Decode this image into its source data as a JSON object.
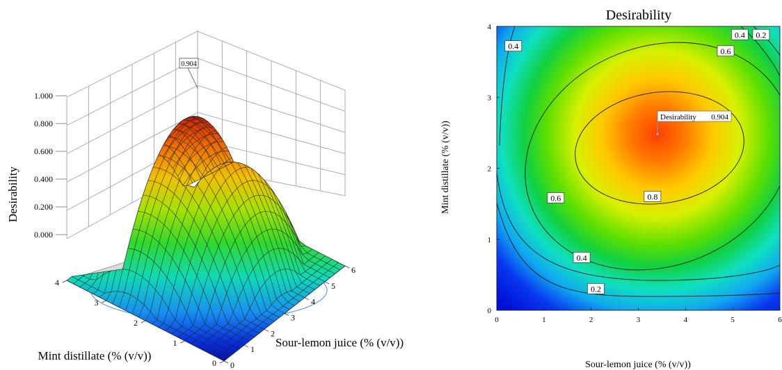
{
  "chart_data": [
    {
      "type": "surface3d",
      "title": "",
      "zlabel": "Desirability",
      "xlabel": "Sour-lemon juice (% (v/v))",
      "ylabel": "Mint distillate (% (v/v))",
      "x_ticks": [
        "0",
        "1",
        "2",
        "3",
        "4",
        "5",
        "6"
      ],
      "y_ticks": [
        "0",
        "1",
        "2",
        "3",
        "4"
      ],
      "z_ticks": [
        "0.000",
        "0.200",
        "0.400",
        "0.600",
        "0.800",
        "1.000"
      ],
      "xlim": [
        0,
        6
      ],
      "ylim": [
        0,
        4
      ],
      "zlim": [
        0,
        1
      ],
      "max_label": "0.904",
      "max_point": {
        "x": 3.4,
        "y": 2.5,
        "z": 0.904
      }
    },
    {
      "type": "contour",
      "title": "Desirability",
      "xlabel": "Sour-lemon juice (% (v/v))",
      "ylabel": "Mint distillate (% (v/v))",
      "x_ticks": [
        "0",
        "1",
        "2",
        "3",
        "4",
        "5",
        "6"
      ],
      "y_ticks": [
        "0",
        "1",
        "2",
        "3",
        "4"
      ],
      "xlim": [
        0,
        6
      ],
      "ylim": [
        0,
        4
      ],
      "levels": [
        0.2,
        0.4,
        0.6,
        0.8
      ],
      "contour_labels": [
        {
          "text": "0.4",
          "x": 0.35,
          "y": 3.72
        },
        {
          "text": "0.4",
          "x": 5.15,
          "y": 3.88
        },
        {
          "text": "0.2",
          "x": 5.6,
          "y": 3.88
        },
        {
          "text": "0.6",
          "x": 4.85,
          "y": 3.65
        },
        {
          "text": "0.6",
          "x": 1.25,
          "y": 1.58
        },
        {
          "text": "0.8",
          "x": 3.3,
          "y": 1.6
        },
        {
          "text": "0.4",
          "x": 1.8,
          "y": 0.74
        },
        {
          "text": "0.2",
          "x": 2.1,
          "y": 0.3
        }
      ],
      "annotation": {
        "label": "Desirability",
        "value": "0.904",
        "x": 3.4,
        "y": 2.5
      }
    }
  ]
}
